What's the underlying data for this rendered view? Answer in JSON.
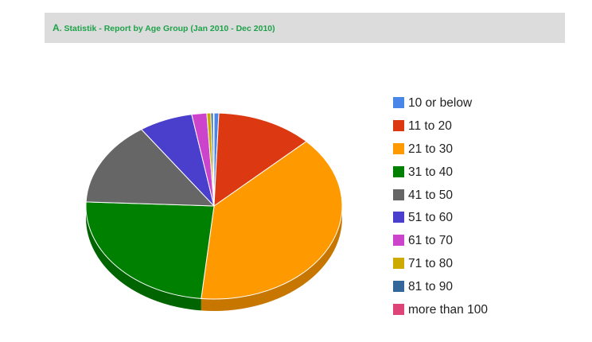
{
  "header": {
    "letter": "A",
    "dot": ".",
    "title": "Statistik - Report by Age Group (Jan 2010 - Dec 2010)"
  },
  "chart_data": {
    "type": "pie",
    "title": "Statistik - Report by Age Group (Jan 2010 - Dec 2010)",
    "legend_position": "right",
    "style": "3d",
    "slices": [
      {
        "label": "10 or below",
        "value": 0.6,
        "color": "#4a86e8"
      },
      {
        "label": "11 to 20",
        "value": 12.2,
        "color": "#dc3912"
      },
      {
        "label": "21 to 30",
        "value": 38.8,
        "color": "#ff9900"
      },
      {
        "label": "31 to 40",
        "value": 24.1,
        "color": "#008000"
      },
      {
        "label": "41 to 50",
        "value": 14.7,
        "color": "#666666"
      },
      {
        "label": "51 to 60",
        "value": 6.8,
        "color": "#4a3fcc"
      },
      {
        "label": "61 to 70",
        "value": 1.9,
        "color": "#cc44cc"
      },
      {
        "label": "71 to 80",
        "value": 0.5,
        "color": "#ccaa00"
      },
      {
        "label": "81 to 90",
        "value": 0.3,
        "color": "#336699"
      },
      {
        "label": "more than 100",
        "value": 0.1,
        "color": "#dd4477"
      }
    ]
  }
}
